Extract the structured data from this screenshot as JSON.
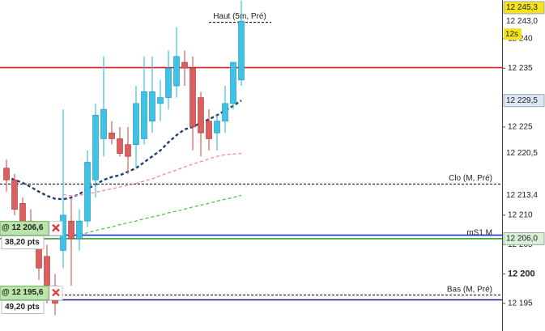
{
  "chart_data": {
    "type": "candlestick",
    "ylim": [
      12190.3,
      12246.6
    ],
    "yticks": [
      {
        "value": 12240,
        "label": "12 240"
      },
      {
        "value": 12235,
        "label": "12 235"
      },
      {
        "value": 12225,
        "label": "12 225"
      },
      {
        "value": 12210,
        "label": "12 210"
      },
      {
        "value": 12205,
        "label": "12 205"
      },
      {
        "value": 12200,
        "label": "12 200"
      },
      {
        "value": 12195,
        "label": "12 195"
      }
    ],
    "up_color": "#3ec3e6",
    "down_color": "#d9605f",
    "open": [
      12218,
      12216,
      12212,
      12209,
      12207,
      12203,
      12198,
      12204,
      12209,
      12206,
      12209,
      12216,
      12223,
      12224,
      12223,
      12222,
      12222,
      12223,
      12226,
      12229,
      12230,
      12232,
      12236,
      12235,
      12230,
      12226,
      12224,
      12226,
      12229,
      12233
    ],
    "high": [
      12219.5,
      12217,
      12213,
      12211,
      12208,
      12205,
      12200,
      12228,
      12213,
      12211,
      12221,
      12229,
      12237,
      12226,
      12225,
      12225,
      12232,
      12237,
      12237,
      12233,
      12238,
      12242,
      12238,
      12237,
      12231,
      12228,
      12227,
      12232,
      12236,
      12246.5
    ],
    "low": [
      12214,
      12210,
      12207,
      12205,
      12199,
      12195,
      12193,
      12201,
      12198,
      12204,
      12208,
      12213,
      12220,
      12222,
      12220,
      12217,
      12218,
      12222,
      12224,
      12226,
      12228,
      12230,
      12232,
      12221,
      12220,
      12221,
      12221,
      12224,
      12228,
      12232
    ],
    "close": [
      12216,
      12211,
      12208,
      12206,
      12201,
      12197,
      12195,
      12210,
      12206,
      12209,
      12219,
      12227,
      12228,
      12223,
      12220.5,
      12220,
      12229,
      12231,
      12231,
      12230,
      12235,
      12237,
      12235,
      12225,
      12224,
      12223,
      12226,
      12229,
      12236,
      12243
    ],
    "averages": [
      {
        "color": "#1d3f73",
        "width": 2.4,
        "values": [
          12216.6,
          12216,
          12215.5,
          12214.8,
          12214,
          12213.3,
          12212.8,
          12212.7,
          12213,
          12213.6,
          12214.5,
          12215.2,
          12216,
          12216.5,
          12216.8,
          12217.4,
          12218,
          12219,
          12220,
          12221,
          12222.4,
          12223.6,
          12224.6,
          12225,
          12225.7,
          12226.3,
          12227,
          12227.8,
          12228.6,
          12229.5
        ]
      },
      {
        "color": "#f07ab8",
        "width": 1.2,
        "values": [
          null,
          null,
          null,
          null,
          null,
          null,
          null,
          12213.5,
          12213.3,
          12213.4,
          12213.6,
          12213.9,
          12214.2,
          12214.5,
          12214.8,
          12215.1,
          12215.4,
          12215.8,
          12216.2,
          12216.7,
          12217.2,
          12217.7,
          12218.2,
          12218.7,
          12219.1,
          12219.6,
          12220,
          12220.3,
          12220.4,
          12220.5
        ]
      },
      {
        "color": "#3cc43c",
        "width": 1.2,
        "values": [
          null,
          null,
          null,
          null,
          null,
          null,
          null,
          null,
          null,
          12206.7,
          12207,
          12207.4,
          12207.7,
          12208,
          12208.4,
          12208.7,
          12209,
          12209.4,
          12209.7,
          12210,
          12210.4,
          12210.7,
          12211,
          12211.4,
          12211.7,
          12212,
          12212.4,
          12212.7,
          12213,
          12213.4
        ]
      }
    ],
    "levels": [
      {
        "value": 12235.1,
        "color": "#e02020",
        "style": "solid"
      },
      {
        "value": 12206.6,
        "color": "#1a2fd0",
        "style": "solid"
      },
      {
        "value": 12206.0,
        "color": "#3a9a3a",
        "style": "solid",
        "label": "mS1 M"
      },
      {
        "value": 12195.6,
        "color": "#1a1a8a",
        "style": "solid"
      },
      {
        "value": 12215.3,
        "color": "#000000",
        "style": "dash",
        "label": "Clo (M, Pré)"
      },
      {
        "value": 12196.4,
        "color": "#000000",
        "style": "dash",
        "label": "Bas (M, Pré)"
      },
      {
        "value": 12242.8,
        "color": "#000000",
        "style": "short",
        "label": "Haut (5m, Pré)"
      }
    ],
    "tags": [
      {
        "value": 12245.3,
        "label": "12 245,3",
        "bg": "#f5e21c",
        "fg": "#000000"
      },
      {
        "value": 12243.0,
        "label": "12 243,0",
        "bg": "#ffffff",
        "fg": "#000000"
      },
      {
        "value": 12229.5,
        "label": "12 229,5",
        "bg": "#dde6f5",
        "fg": "#1a3a7a"
      },
      {
        "value": 12220.5,
        "label": "12 220,5",
        "bg": "#ffffff",
        "fg": "#e040c0"
      },
      {
        "value": 12213.4,
        "label": "12 213,4",
        "bg": "#ffffff",
        "fg": "#22aa22"
      },
      {
        "value": 12206.0,
        "label": "12 206,0",
        "bg": "#d8f0d8",
        "fg": "#1a6a1a"
      }
    ],
    "timer": "12s",
    "orders": [
      {
        "value": 12206.6,
        "label": "@ 12 206,6",
        "pts": "38,20 pts"
      },
      {
        "value": 12195.6,
        "label": "@ 12 195,6",
        "pts": "49,20 pts"
      }
    ]
  }
}
